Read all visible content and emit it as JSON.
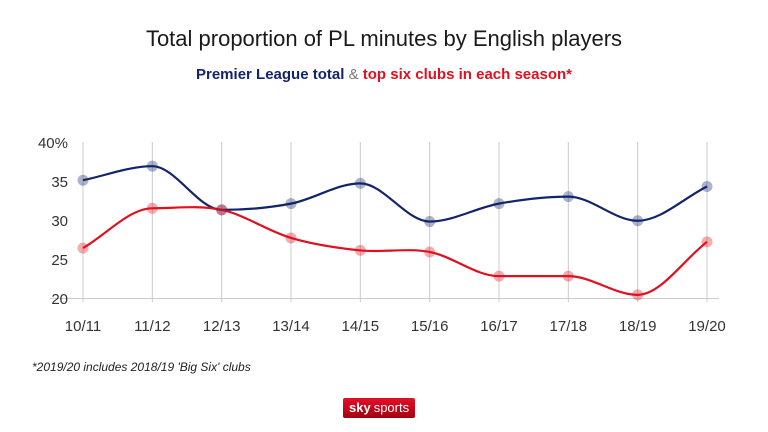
{
  "title": "Total proportion of PL minutes by English players",
  "subtitle": {
    "series1": "Premier League total",
    "separator": "&",
    "series2": "top six clubs in each season*"
  },
  "footnote": "*2019/20 includes 2018/19 'Big Six' clubs",
  "logo": {
    "part1": "sky",
    "part2": "sports"
  },
  "colors": {
    "premier_league": "#12246b",
    "top_six": "#e0101f",
    "grid": "#cccccc"
  },
  "chart_data": {
    "type": "line",
    "categories": [
      "10/11",
      "11/12",
      "12/13",
      "13/14",
      "14/15",
      "15/16",
      "16/17",
      "17/18",
      "18/19",
      "19/20"
    ],
    "yticks": [
      "40%",
      "35",
      "30",
      "25",
      "20"
    ],
    "ylim": [
      20,
      40
    ],
    "grid": "vertical",
    "series": [
      {
        "name": "Premier League total",
        "values": [
          35.1,
          36.9,
          31.3,
          32.1,
          34.7,
          29.8,
          32.1,
          33.0,
          29.9,
          34.3
        ]
      },
      {
        "name": "top six clubs in each season*",
        "values": [
          26.4,
          31.5,
          31.3,
          27.7,
          26.1,
          25.9,
          22.8,
          22.8,
          20.4,
          27.2
        ]
      }
    ]
  }
}
